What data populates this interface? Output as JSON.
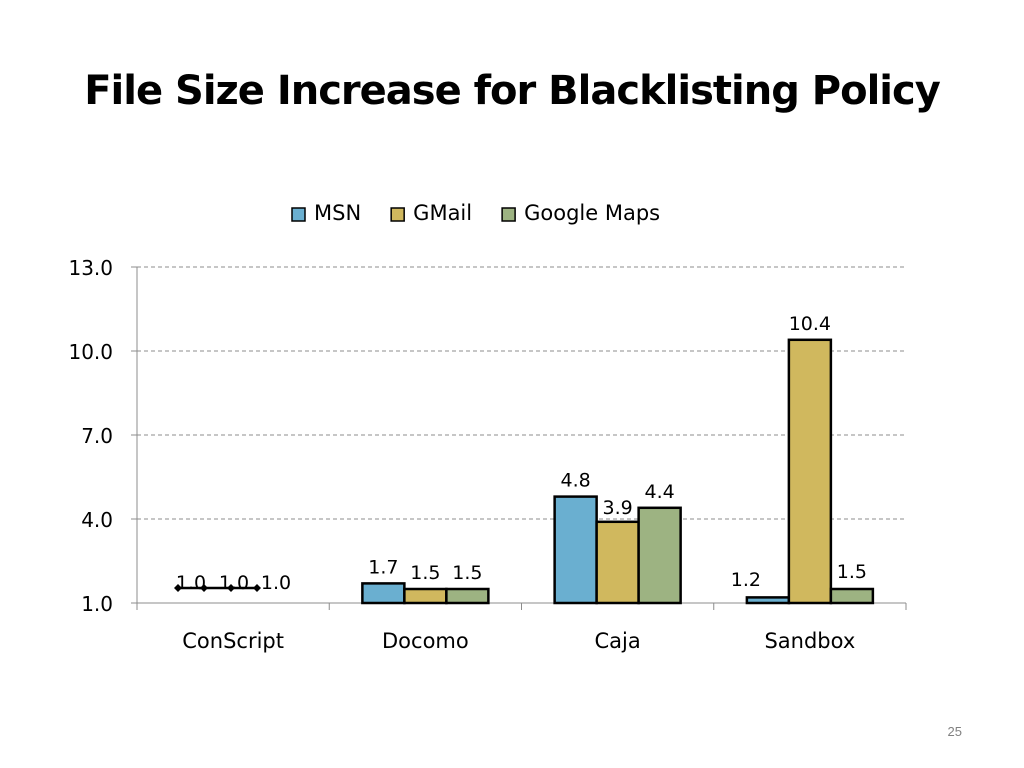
{
  "slide": {
    "title": "File Size Increase for Blacklisting Policy",
    "page_number": "25"
  },
  "chart_data": {
    "type": "bar",
    "title": "",
    "xlabel": "",
    "ylabel": "",
    "categories": [
      "ConScript",
      "Docomo",
      "Caja",
      "Sandbox"
    ],
    "series": [
      {
        "name": "MSN",
        "color": "#6aafd0",
        "values": [
          1.0,
          1.7,
          4.8,
          1.2
        ],
        "labels": [
          "1.0",
          "1.7",
          "4.8",
          "1.2"
        ]
      },
      {
        "name": "GMail",
        "color": "#d0b85e",
        "values": [
          1.0,
          1.5,
          3.9,
          10.4
        ],
        "labels": [
          "1.0",
          "1.5",
          "3.9",
          "10.4"
        ]
      },
      {
        "name": "Google Maps",
        "color": "#9db382",
        "values": [
          1.0,
          1.5,
          4.4,
          1.5
        ],
        "labels": [
          "1.0",
          "1.5",
          "4.4",
          "1.5"
        ]
      }
    ],
    "ylim": [
      1.0,
      13.0
    ],
    "yticks": [
      "1.0",
      "4.0",
      "7.0",
      "10.0",
      "13.0"
    ],
    "grid": true,
    "legend_position": "top-center",
    "conscript_marker_line": true
  }
}
